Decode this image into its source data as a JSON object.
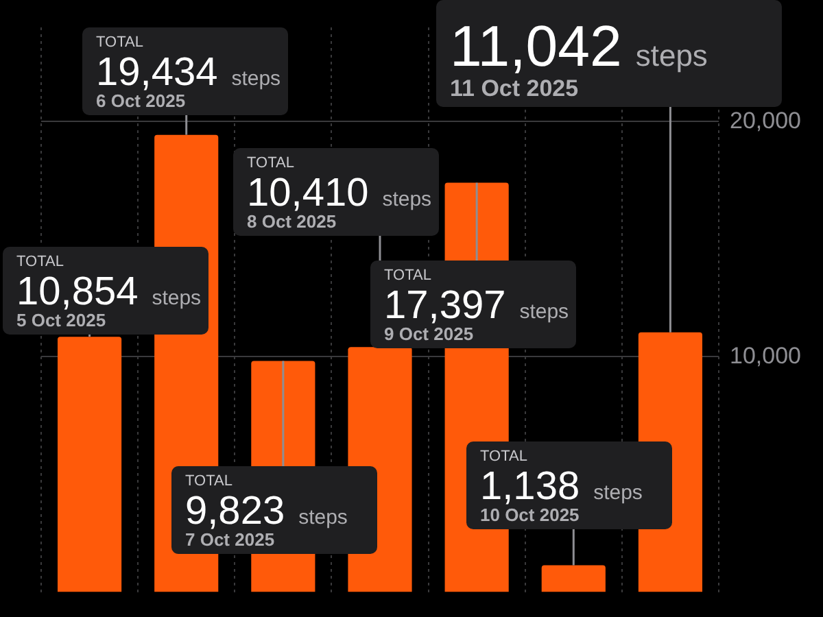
{
  "chart_data": {
    "type": "bar",
    "categories": [
      null,
      null,
      null,
      null,
      null,
      null,
      null
    ],
    "values": [
      10854,
      19434,
      9823,
      10410,
      17397,
      1138,
      11042
    ],
    "value_labels": [
      "10,854",
      "19,434",
      "9,823",
      "10,410",
      "17,397",
      "1,138",
      "11,042"
    ],
    "color": "#ff5a0a",
    "ylim": [
      0,
      24000
    ],
    "yticks": [
      {
        "value": 10000,
        "label": "10,000"
      },
      {
        "value": 20000,
        "label": "20,000"
      }
    ],
    "grid": true,
    "annotations": [
      "TOTAL",
      "steps",
      "5 Oct 2025",
      "6 Oct 2025",
      "7 Oct 2025",
      "8 Oct 2025",
      "9 Oct 2025",
      "10 Oct 2025",
      "11 Oct 2025"
    ]
  }
}
